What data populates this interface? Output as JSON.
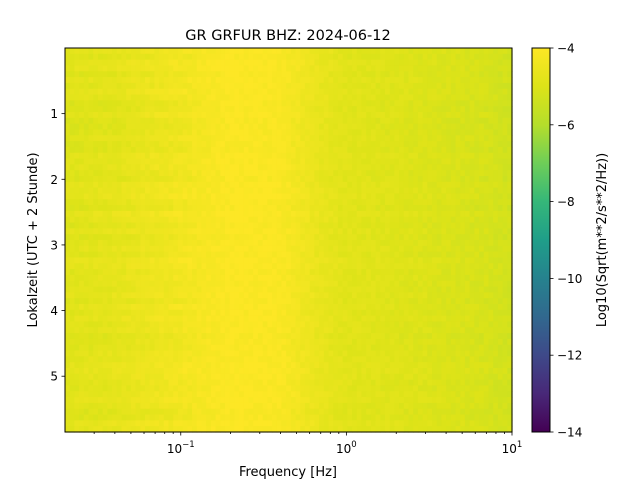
{
  "chart_data": {
    "type": "heatmap",
    "title": "GR GRFUR  BHZ: 2024-06-12",
    "xlabel": "Frequency [Hz]",
    "ylabel": "Lokalzeit (UTC + 2 Stunde)",
    "x_scale": "log",
    "xlim": [
      0.02,
      10
    ],
    "x_ticks": [
      {
        "value": 0.1,
        "base": "10",
        "exp": "−1"
      },
      {
        "value": 1,
        "base": "10",
        "exp": "0"
      },
      {
        "value": 10,
        "base": "10",
        "exp": "1"
      }
    ],
    "ylim": [
      0.0,
      5.85
    ],
    "y_inverted": true,
    "y_ticks": [
      "1",
      "2",
      "3",
      "4",
      "5"
    ],
    "colormap": "viridis",
    "colorbar": {
      "label": "Log10(Sqrt(m**2/s**2/Hz))",
      "min": -14,
      "max": -4,
      "ticks": [
        "−4",
        "−6",
        "−8",
        "−10",
        "−12",
        "−14"
      ]
    },
    "value_range_approx": [
      -5.7,
      -4.0
    ],
    "frequency_profile_approx": [
      {
        "freq_hz": 0.02,
        "value": -4.9
      },
      {
        "freq_hz": 0.04,
        "value": -4.75
      },
      {
        "freq_hz": 0.1,
        "value": -4.35
      },
      {
        "freq_hz": 0.2,
        "value": -4.05
      },
      {
        "freq_hz": 0.4,
        "value": -4.1
      },
      {
        "freq_hz": 0.7,
        "value": -4.65
      },
      {
        "freq_hz": 1.0,
        "value": -4.85
      },
      {
        "freq_hz": 3.0,
        "value": -5.0
      },
      {
        "freq_hz": 7.0,
        "value": -5.15
      },
      {
        "freq_hz": 10.0,
        "value": -5.3
      }
    ]
  }
}
